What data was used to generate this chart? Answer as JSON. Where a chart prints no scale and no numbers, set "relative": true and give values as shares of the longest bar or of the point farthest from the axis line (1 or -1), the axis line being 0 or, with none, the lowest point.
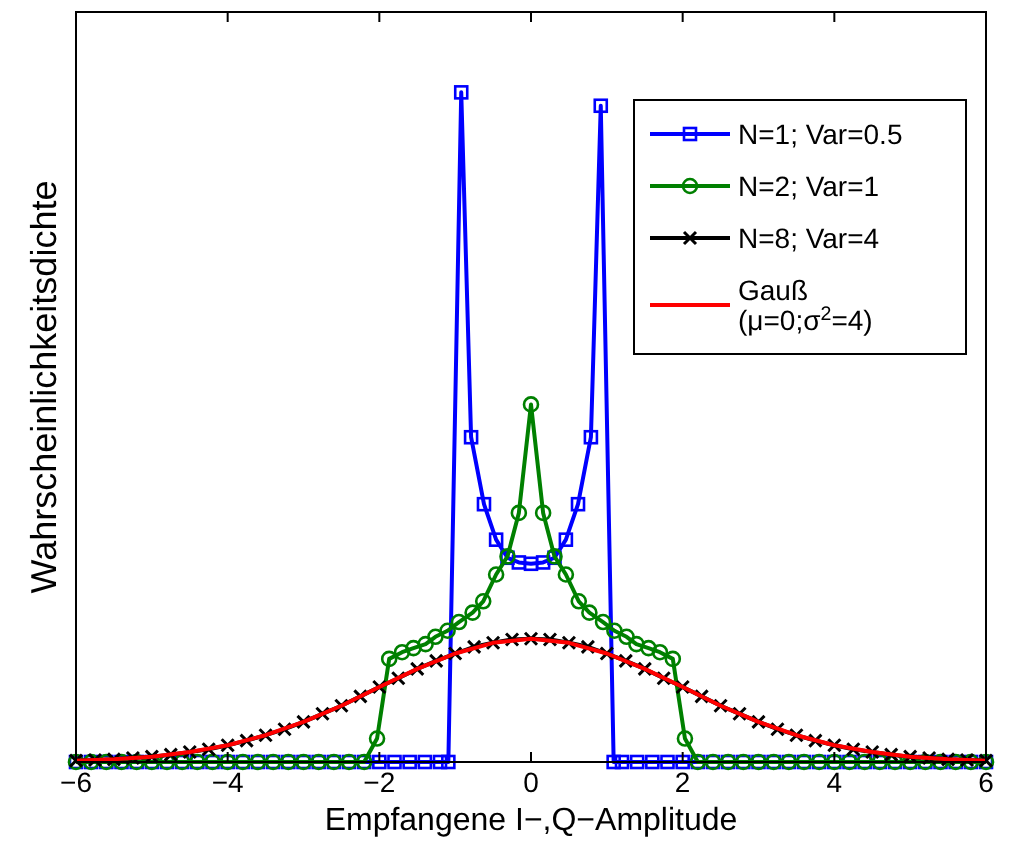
{
  "chart_data": {
    "type": "line",
    "relative": true,
    "xlabel": "Empfangene I−,Q−Amplitude",
    "ylabel": "Wahrscheinlichkeitsdichte",
    "xlim": [
      -6,
      6
    ],
    "xticks": [
      {
        "value": -6,
        "label": "−6"
      },
      {
        "value": -4,
        "label": "−4"
      },
      {
        "value": -2,
        "label": "−2"
      },
      0,
      2,
      4,
      6
    ],
    "tick_labels": "x",
    "legend": "top right",
    "grid": false,
    "line_style": "solid",
    "series": [
      {
        "name": "N=1; Var=0.5",
        "color": "#0000ff",
        "marker": "square",
        "x": [
          -6,
          -5.8,
          -5.6,
          -5.4,
          -5.2,
          -5,
          -4.8,
          -4.6,
          -4.4,
          -4.2,
          -4,
          -3.8,
          -3.6,
          -3.4,
          -3.2,
          -3,
          -2.8,
          -2.6,
          -2.4,
          -2.2,
          -2,
          -1.8,
          -1.6,
          -1.4,
          -1.2,
          -1.09,
          -0.92,
          -0.79,
          -0.62,
          -0.46,
          -0.31,
          -0.16,
          0,
          0.16,
          0.31,
          0.46,
          0.62,
          0.79,
          0.92,
          1.09,
          1.2,
          1.4,
          1.6,
          1.8,
          2,
          2.2,
          2.4,
          2.6,
          2.8,
          3,
          3.2,
          3.4,
          3.6,
          3.8,
          4,
          4.2,
          4.4,
          4.6,
          4.8,
          5,
          5.2,
          5.4,
          5.6,
          5.8,
          6
        ],
        "values": [
          0,
          0,
          0,
          0,
          0,
          0,
          0,
          0,
          0,
          0,
          0,
          0,
          0,
          0,
          0,
          0,
          0,
          0,
          0,
          0,
          0,
          0,
          0,
          0,
          0,
          0,
          1,
          0.485,
          0.385,
          0.332,
          0.305,
          0.298,
          0.296,
          0.298,
          0.305,
          0.332,
          0.385,
          0.485,
          0.98,
          0,
          0,
          0,
          0,
          0,
          0,
          0,
          0,
          0,
          0,
          0,
          0,
          0,
          0,
          0,
          0,
          0,
          0,
          0,
          0,
          0,
          0,
          0,
          0,
          0,
          0
        ]
      },
      {
        "name": "N=2; Var=1",
        "color": "#008000",
        "marker": "circle",
        "x": [
          -6,
          -5.8,
          -5.6,
          -5.4,
          -5.2,
          -5,
          -4.8,
          -4.6,
          -4.4,
          -4.2,
          -4,
          -3.8,
          -3.6,
          -3.4,
          -3.2,
          -3,
          -2.8,
          -2.6,
          -2.4,
          -2.2,
          -2.03,
          -1.87,
          -1.7,
          -1.55,
          -1.39,
          -1.26,
          -1.1,
          -0.95,
          -0.77,
          -0.63,
          -0.46,
          -0.31,
          -0.16,
          0,
          0.16,
          0.31,
          0.46,
          0.63,
          0.77,
          0.95,
          1.1,
          1.26,
          1.39,
          1.55,
          1.7,
          1.87,
          2.03,
          2.2,
          2.4,
          2.6,
          2.8,
          3,
          3.2,
          3.4,
          3.6,
          3.8,
          4,
          4.2,
          4.4,
          4.6,
          4.8,
          5,
          5.2,
          5.4,
          5.6,
          5.8,
          6
        ],
        "values": [
          0,
          0,
          0,
          0,
          0,
          0,
          0,
          0,
          0,
          0,
          0,
          0,
          0,
          0,
          0,
          0,
          0,
          0,
          0,
          0,
          0.035,
          0.154,
          0.164,
          0.17,
          0.176,
          0.187,
          0.196,
          0.209,
          0.223,
          0.24,
          0.28,
          0.307,
          0.372,
          0.534,
          0.372,
          0.307,
          0.28,
          0.24,
          0.223,
          0.209,
          0.196,
          0.187,
          0.176,
          0.17,
          0.164,
          0.154,
          0.035,
          0,
          0,
          0,
          0,
          0,
          0,
          0,
          0,
          0,
          0,
          0,
          0,
          0,
          0,
          0,
          0,
          0,
          0,
          0,
          0
        ]
      },
      {
        "name": "N=8; Var=4",
        "color": "#000000",
        "marker": "cross",
        "x": [
          -6,
          -5.75,
          -5.5,
          -5.25,
          -5,
          -4.75,
          -4.5,
          -4.25,
          -4,
          -3.75,
          -3.5,
          -3.25,
          -3,
          -2.75,
          -2.5,
          -2.25,
          -2,
          -1.75,
          -1.5,
          -1.25,
          -1,
          -0.75,
          -0.5,
          -0.25,
          0,
          0.25,
          0.5,
          0.75,
          1,
          1.25,
          1.5,
          1.75,
          2,
          2.25,
          2.5,
          2.75,
          3,
          3.25,
          3.5,
          3.75,
          4,
          4.25,
          4.5,
          4.75,
          5,
          5.25,
          5.5,
          5.75,
          6
        ],
        "values": [
          0.002,
          0.003,
          0.004,
          0.006,
          0.008,
          0.011,
          0.015,
          0.019,
          0.025,
          0.032,
          0.04,
          0.049,
          0.06,
          0.072,
          0.084,
          0.098,
          0.112,
          0.125,
          0.139,
          0.151,
          0.162,
          0.172,
          0.178,
          0.183,
          0.184,
          0.183,
          0.178,
          0.172,
          0.162,
          0.151,
          0.139,
          0.125,
          0.112,
          0.098,
          0.084,
          0.072,
          0.06,
          0.049,
          0.04,
          0.032,
          0.025,
          0.019,
          0.015,
          0.011,
          0.008,
          0.006,
          0.004,
          0.003,
          0.002
        ]
      },
      {
        "name": "Gauß (μ=0;σ$^{2}$=4)",
        "color": "#ff0000",
        "marker": "none",
        "x": [
          -6,
          -5.5,
          -5,
          -4.5,
          -4,
          -3.5,
          -3,
          -2.5,
          -2,
          -1.5,
          -1,
          -0.5,
          0,
          0.5,
          1,
          1.5,
          2,
          2.5,
          3,
          3.5,
          4,
          4.5,
          5,
          5.5,
          6
        ],
        "values": [
          0.002,
          0.004,
          0.008,
          0.015,
          0.025,
          0.04,
          0.06,
          0.084,
          0.112,
          0.139,
          0.162,
          0.178,
          0.184,
          0.178,
          0.162,
          0.139,
          0.112,
          0.084,
          0.06,
          0.04,
          0.025,
          0.015,
          0.008,
          0.004,
          0.002
        ]
      }
    ]
  }
}
